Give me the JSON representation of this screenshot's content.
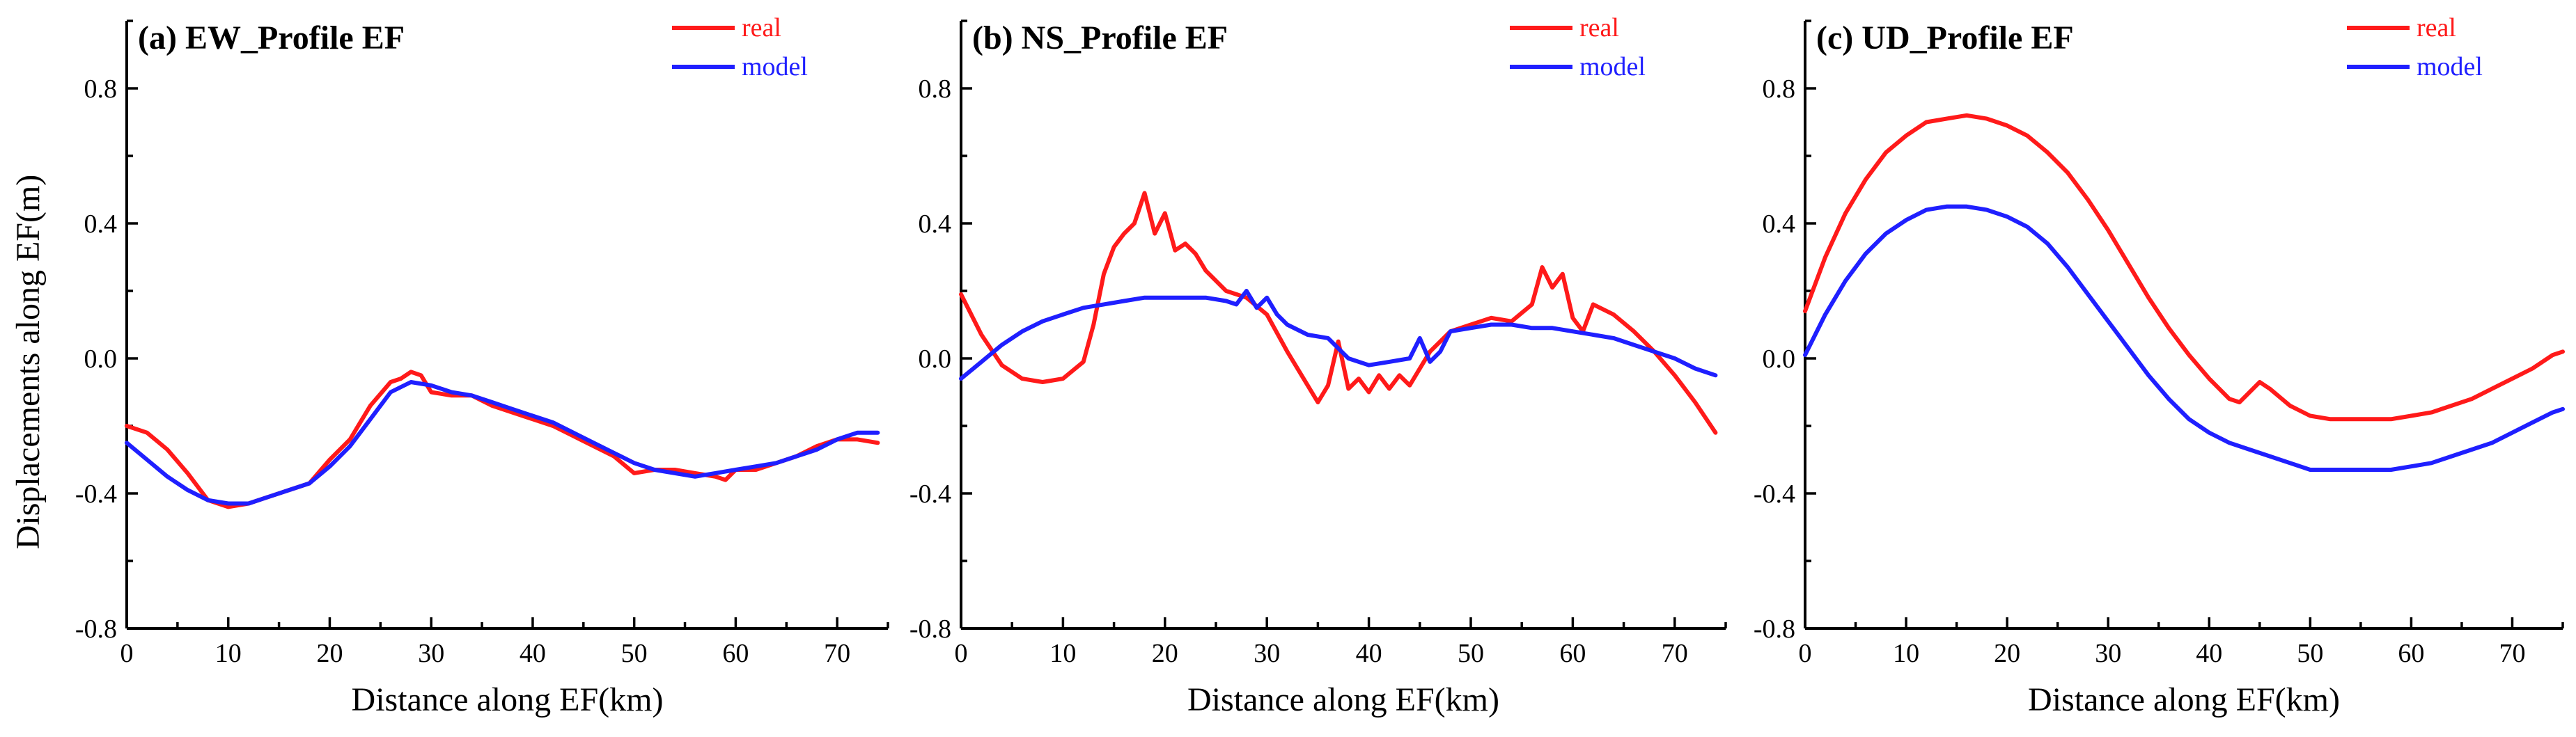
{
  "colors": {
    "real": "#ff1a1a",
    "model": "#1f1fff"
  },
  "y_axis_title": "Displacements along EF(m)",
  "chart_data": [
    {
      "id": "a",
      "type": "line",
      "title": "(a) EW_Profile EF",
      "xlabel": "Distance along EF(km)",
      "ylabel": "Displacements along EF(m)",
      "xlim": [
        0,
        75
      ],
      "ylim": [
        -0.8,
        1.0
      ],
      "xticks": [
        0,
        10,
        20,
        30,
        40,
        50,
        60,
        70
      ],
      "xtick_labels": [
        "0",
        "10",
        "20",
        "30",
        "40",
        "50",
        "60",
        "70"
      ],
      "yticks": [
        -0.8,
        -0.4,
        0.0,
        0.4,
        0.8
      ],
      "ytick_labels": [
        "-0.8",
        "-0.4",
        "0.0",
        "0.4",
        "0.8"
      ],
      "legend": [
        "real",
        "model"
      ],
      "series": [
        {
          "name": "real",
          "x": [
            0,
            2,
            4,
            6,
            8,
            10,
            12,
            14,
            16,
            18,
            20,
            22,
            24,
            26,
            27,
            28,
            29,
            30,
            32,
            34,
            36,
            38,
            40,
            42,
            44,
            46,
            48,
            50,
            52,
            54,
            56,
            58,
            59,
            60,
            62,
            64,
            66,
            68,
            70,
            72,
            74
          ],
          "values": [
            -0.2,
            -0.22,
            -0.27,
            -0.34,
            -0.42,
            -0.44,
            -0.43,
            -0.41,
            -0.39,
            -0.37,
            -0.3,
            -0.24,
            -0.14,
            -0.07,
            -0.06,
            -0.04,
            -0.05,
            -0.1,
            -0.11,
            -0.11,
            -0.14,
            -0.16,
            -0.18,
            -0.2,
            -0.23,
            -0.26,
            -0.29,
            -0.34,
            -0.33,
            -0.33,
            -0.34,
            -0.35,
            -0.36,
            -0.33,
            -0.33,
            -0.31,
            -0.29,
            -0.26,
            -0.24,
            -0.24,
            -0.25
          ]
        },
        {
          "name": "model",
          "x": [
            0,
            2,
            4,
            6,
            8,
            10,
            12,
            14,
            16,
            18,
            20,
            22,
            24,
            26,
            28,
            30,
            32,
            34,
            36,
            38,
            40,
            42,
            44,
            46,
            48,
            50,
            52,
            54,
            56,
            58,
            60,
            62,
            64,
            66,
            68,
            70,
            72,
            74
          ],
          "values": [
            -0.25,
            -0.3,
            -0.35,
            -0.39,
            -0.42,
            -0.43,
            -0.43,
            -0.41,
            -0.39,
            -0.37,
            -0.32,
            -0.26,
            -0.18,
            -0.1,
            -0.07,
            -0.08,
            -0.1,
            -0.11,
            -0.13,
            -0.15,
            -0.17,
            -0.19,
            -0.22,
            -0.25,
            -0.28,
            -0.31,
            -0.33,
            -0.34,
            -0.35,
            -0.34,
            -0.33,
            -0.32,
            -0.31,
            -0.29,
            -0.27,
            -0.24,
            -0.22,
            -0.22
          ]
        }
      ]
    },
    {
      "id": "b",
      "type": "line",
      "title": "(b) NS_Profile EF",
      "xlabel": "Distance along EF(km)",
      "ylabel": "",
      "xlim": [
        0,
        75
      ],
      "ylim": [
        -0.8,
        1.0
      ],
      "xticks": [
        0,
        10,
        20,
        30,
        40,
        50,
        60,
        70
      ],
      "xtick_labels": [
        "0",
        "10",
        "20",
        "30",
        "40",
        "50",
        "60",
        "70"
      ],
      "yticks": [
        -0.8,
        -0.4,
        0.0,
        0.4,
        0.8
      ],
      "ytick_labels": [
        "-0.8",
        "-0.4",
        "0.0",
        "0.4",
        "0.8"
      ],
      "legend": [
        "real",
        "model"
      ],
      "series": [
        {
          "name": "real",
          "x": [
            0,
            2,
            4,
            6,
            8,
            10,
            12,
            13,
            14,
            15,
            16,
            17,
            18,
            19,
            20,
            21,
            22,
            23,
            24,
            26,
            28,
            30,
            32,
            34,
            35,
            36,
            37,
            38,
            39,
            40,
            41,
            42,
            43,
            44,
            46,
            48,
            50,
            52,
            54,
            56,
            57,
            58,
            59,
            60,
            61,
            62,
            64,
            66,
            68,
            70,
            72,
            74
          ],
          "values": [
            0.19,
            0.07,
            -0.02,
            -0.06,
            -0.07,
            -0.06,
            -0.01,
            0.1,
            0.25,
            0.33,
            0.37,
            0.4,
            0.49,
            0.37,
            0.43,
            0.32,
            0.34,
            0.31,
            0.26,
            0.2,
            0.18,
            0.13,
            0.02,
            -0.08,
            -0.13,
            -0.08,
            0.05,
            -0.09,
            -0.06,
            -0.1,
            -0.05,
            -0.09,
            -0.05,
            -0.08,
            0.02,
            0.08,
            0.1,
            0.12,
            0.11,
            0.16,
            0.27,
            0.21,
            0.25,
            0.12,
            0.08,
            0.16,
            0.13,
            0.08,
            0.02,
            -0.05,
            -0.13,
            -0.22
          ]
        },
        {
          "name": "model",
          "x": [
            0,
            2,
            4,
            6,
            8,
            10,
            12,
            14,
            16,
            18,
            20,
            22,
            24,
            26,
            27,
            28,
            29,
            30,
            31,
            32,
            34,
            36,
            38,
            40,
            42,
            44,
            45,
            46,
            47,
            48,
            50,
            52,
            54,
            56,
            58,
            60,
            62,
            64,
            66,
            68,
            70,
            72,
            74
          ],
          "values": [
            -0.06,
            -0.01,
            0.04,
            0.08,
            0.11,
            0.13,
            0.15,
            0.16,
            0.17,
            0.18,
            0.18,
            0.18,
            0.18,
            0.17,
            0.16,
            0.2,
            0.15,
            0.18,
            0.13,
            0.1,
            0.07,
            0.06,
            0.0,
            -0.02,
            -0.01,
            0.0,
            0.06,
            -0.01,
            0.02,
            0.08,
            0.09,
            0.1,
            0.1,
            0.09,
            0.09,
            0.08,
            0.07,
            0.06,
            0.04,
            0.02,
            0.0,
            -0.03,
            -0.05
          ]
        }
      ]
    },
    {
      "id": "c",
      "type": "line",
      "title": "(c) UD_Profile EF",
      "xlabel": "Distance along EF(km)",
      "ylabel": "",
      "xlim": [
        0,
        75
      ],
      "ylim": [
        -0.8,
        1.0
      ],
      "xticks": [
        0,
        10,
        20,
        30,
        40,
        50,
        60,
        70
      ],
      "xtick_labels": [
        "0",
        "10",
        "20",
        "30",
        "40",
        "50",
        "60",
        "70"
      ],
      "yticks": [
        -0.8,
        -0.4,
        0.0,
        0.4,
        0.8
      ],
      "ytick_labels": [
        "-0.8",
        "-0.4",
        "0.0",
        "0.4",
        "0.8"
      ],
      "legend": [
        "real",
        "model"
      ],
      "series": [
        {
          "name": "real",
          "x": [
            0,
            2,
            4,
            6,
            8,
            10,
            12,
            14,
            16,
            18,
            20,
            22,
            24,
            26,
            28,
            30,
            32,
            34,
            36,
            38,
            40,
            42,
            43,
            44,
            45,
            46,
            48,
            50,
            52,
            54,
            56,
            58,
            60,
            62,
            64,
            66,
            68,
            70,
            72,
            74,
            75
          ],
          "values": [
            0.14,
            0.3,
            0.43,
            0.53,
            0.61,
            0.66,
            0.7,
            0.71,
            0.72,
            0.71,
            0.69,
            0.66,
            0.61,
            0.55,
            0.47,
            0.38,
            0.28,
            0.18,
            0.09,
            0.01,
            -0.06,
            -0.12,
            -0.13,
            -0.1,
            -0.07,
            -0.09,
            -0.14,
            -0.17,
            -0.18,
            -0.18,
            -0.18,
            -0.18,
            -0.17,
            -0.16,
            -0.14,
            -0.12,
            -0.09,
            -0.06,
            -0.03,
            0.01,
            0.02
          ]
        },
        {
          "name": "model",
          "x": [
            0,
            2,
            4,
            6,
            8,
            10,
            12,
            14,
            16,
            18,
            20,
            22,
            24,
            26,
            28,
            30,
            32,
            34,
            36,
            38,
            40,
            42,
            44,
            46,
            48,
            50,
            52,
            54,
            56,
            58,
            60,
            62,
            64,
            66,
            68,
            70,
            72,
            74,
            75
          ],
          "values": [
            0.01,
            0.13,
            0.23,
            0.31,
            0.37,
            0.41,
            0.44,
            0.45,
            0.45,
            0.44,
            0.42,
            0.39,
            0.34,
            0.27,
            0.19,
            0.11,
            0.03,
            -0.05,
            -0.12,
            -0.18,
            -0.22,
            -0.25,
            -0.27,
            -0.29,
            -0.31,
            -0.33,
            -0.33,
            -0.33,
            -0.33,
            -0.33,
            -0.32,
            -0.31,
            -0.29,
            -0.27,
            -0.25,
            -0.22,
            -0.19,
            -0.16,
            -0.15
          ]
        }
      ]
    }
  ]
}
